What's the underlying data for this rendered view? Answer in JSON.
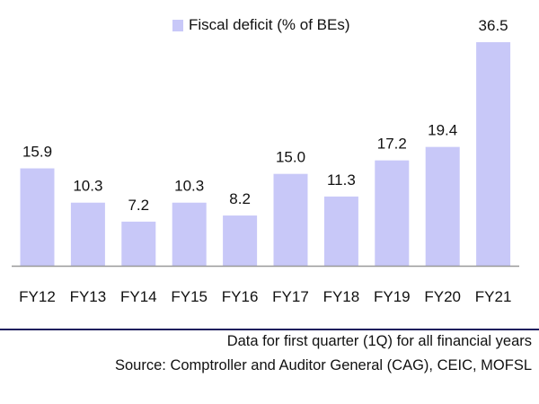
{
  "chart_data": {
    "type": "bar",
    "categories": [
      "FY12",
      "FY13",
      "FY14",
      "FY15",
      "FY16",
      "FY17",
      "FY18",
      "FY19",
      "FY20",
      "FY21"
    ],
    "series": [
      {
        "name": "Fiscal deficit (% of BEs)",
        "values": [
          15.9,
          10.3,
          7.2,
          10.3,
          8.2,
          15.0,
          11.3,
          17.2,
          19.4,
          36.5
        ],
        "color": "#c8c8f8"
      }
    ],
    "data_labels": [
      "15.9",
      "10.3",
      "7.2",
      "10.3",
      "8.2",
      "15.0",
      "11.3",
      "17.2",
      "19.4",
      "36.5"
    ],
    "legend": "top",
    "grid": false,
    "y_axis_visible": false
  },
  "footnotes": {
    "note": "Data for first quarter (1Q) for all financial years",
    "source": "Source: Comptroller and Auditor General (CAG), CEIC, MOFSL"
  }
}
